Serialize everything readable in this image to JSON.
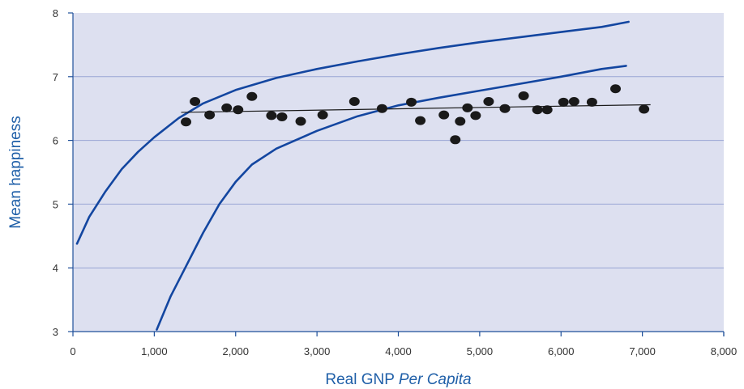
{
  "chart_data": {
    "type": "scatter",
    "title": "",
    "xlabel": "Real GNP",
    "xlabel_italic": "Per Capita",
    "ylabel": "Mean happiness",
    "xlim": [
      0,
      8000
    ],
    "ylim": [
      3,
      8
    ],
    "x_ticks": [
      "0",
      "1,000",
      "2,000",
      "3,000",
      "4,000",
      "5,000",
      "6,000",
      "7,000",
      "8,000"
    ],
    "y_ticks": [
      "3",
      "4",
      "5",
      "6",
      "7",
      "8"
    ],
    "grid": "horizontal",
    "colors": {
      "plot_background": "#dde0f0",
      "gridline": "#9aa6d4",
      "axis": "#1f4f9a",
      "curve": "#1346a0",
      "points": "#1a1a1a",
      "trend_line": "#1a1a1a"
    },
    "series": [
      {
        "kind": "points",
        "x": [
          1390,
          1500,
          1680,
          1890,
          2030,
          2200,
          2440,
          2570,
          2800,
          3070,
          3460,
          3800,
          4160,
          4270,
          4560,
          4700,
          4760,
          4850,
          4950,
          5110,
          5310,
          5540,
          5710,
          5830,
          6030,
          6160,
          6380,
          6670,
          7020
        ],
        "y": [
          6.29,
          6.61,
          6.4,
          6.51,
          6.48,
          6.69,
          6.39,
          6.37,
          6.3,
          6.4,
          6.61,
          6.5,
          6.6,
          6.31,
          6.4,
          6.01,
          6.3,
          6.51,
          6.39,
          6.61,
          6.5,
          6.7,
          6.48,
          6.48,
          6.6,
          6.61,
          6.6,
          6.81,
          6.49
        ]
      },
      {
        "kind": "trend-line",
        "x": [
          1330,
          7100
        ],
        "y": [
          6.44,
          6.56
        ]
      },
      {
        "kind": "upper-curve",
        "x": [
          50,
          200,
          400,
          600,
          800,
          1000,
          1300,
          1600,
          2000,
          2500,
          3000,
          3500,
          4000,
          4500,
          5000,
          5500,
          6000,
          6500,
          6830
        ],
        "y": [
          4.38,
          4.8,
          5.2,
          5.55,
          5.82,
          6.05,
          6.35,
          6.58,
          6.79,
          6.98,
          7.12,
          7.24,
          7.35,
          7.45,
          7.54,
          7.62,
          7.7,
          7.78,
          7.86
        ]
      },
      {
        "kind": "lower-curve",
        "x": [
          1030,
          1200,
          1400,
          1600,
          1800,
          2000,
          2200,
          2500,
          3000,
          3500,
          4000,
          4500,
          5000,
          5500,
          6000,
          6500,
          6800
        ],
        "y": [
          3.03,
          3.55,
          4.05,
          4.55,
          5.0,
          5.35,
          5.62,
          5.87,
          6.15,
          6.38,
          6.55,
          6.67,
          6.78,
          6.89,
          7.0,
          7.12,
          7.17
        ]
      }
    ]
  }
}
